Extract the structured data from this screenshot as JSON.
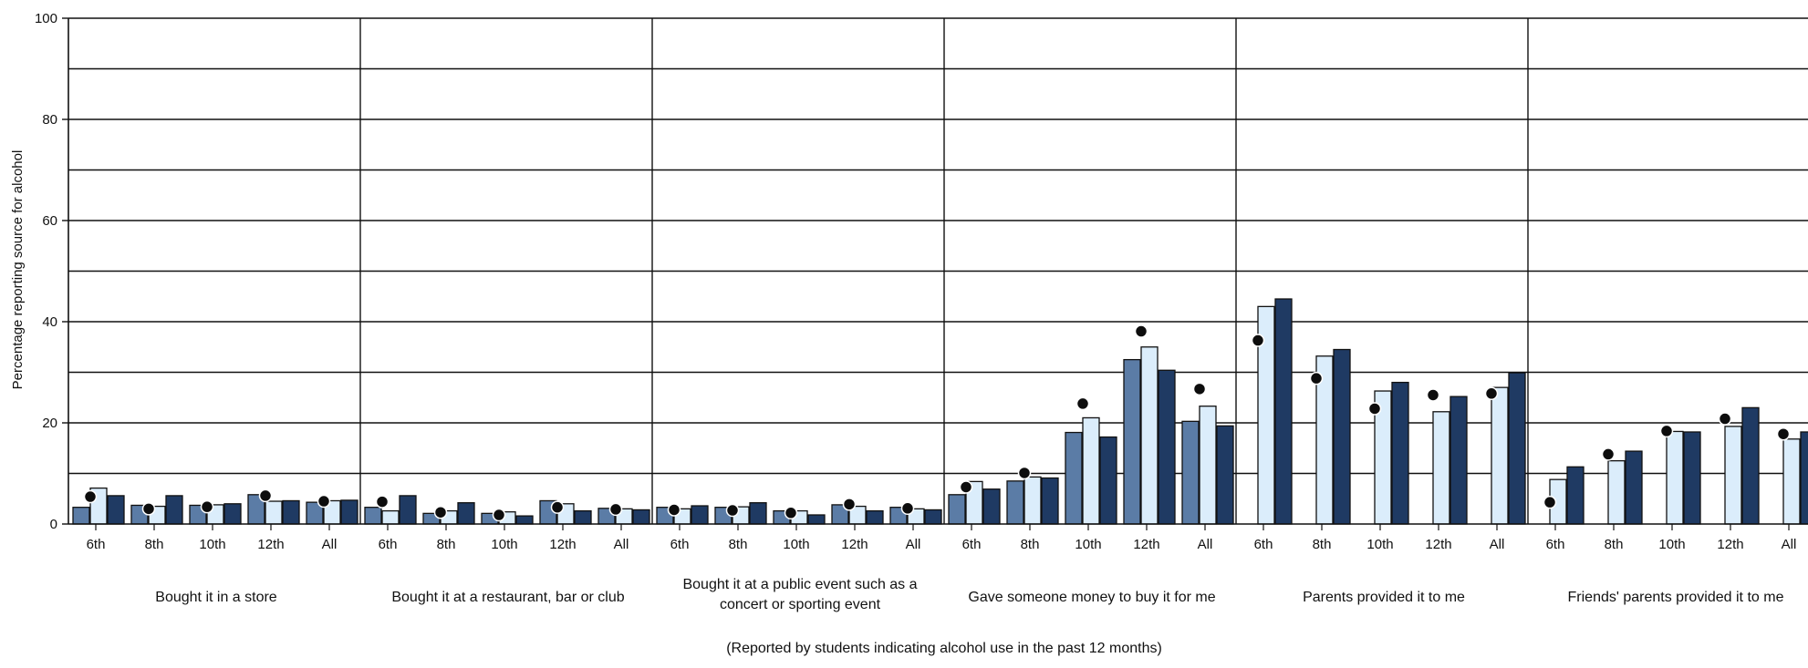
{
  "chart_data": {
    "type": "bar",
    "ylabel": "Percentage reporting source for alcohol",
    "ylim": [
      0,
      100
    ],
    "yticks": [
      0,
      20,
      40,
      60,
      80,
      100
    ],
    "ygrid": [
      10,
      20,
      30,
      40,
      50,
      60,
      70,
      80,
      90,
      100
    ],
    "grades": [
      "6th",
      "8th",
      "10th",
      "12th",
      "All"
    ],
    "note": "(Reported by students indicating alcohol use in the past 12 months)",
    "colors": {
      "series": [
        "#5b7ca6",
        "#dbedfb",
        "#1f3a63"
      ],
      "marker": "#0d0d0d",
      "bar_stroke": "#111111",
      "grid": "#111111"
    },
    "groups": [
      {
        "label": "Bought it in a store",
        "label_lines": [
          "Bought it in a store"
        ],
        "bars": [
          [
            3.3,
            7.1,
            5.6
          ],
          [
            3.7,
            3.5,
            5.6
          ],
          [
            3.7,
            3.8,
            4.0
          ],
          [
            5.8,
            4.5,
            4.6
          ],
          [
            4.3,
            4.6,
            4.7
          ]
        ],
        "markers": [
          5.4,
          3.0,
          3.4,
          5.6,
          4.5
        ]
      },
      {
        "label": "Bought it at a restaurant, bar or club",
        "label_lines": [
          "Bought it at a restaurant, bar or club"
        ],
        "bars": [
          [
            3.3,
            2.6,
            5.6
          ],
          [
            2.1,
            2.6,
            4.2
          ],
          [
            2.1,
            2.4,
            1.6
          ],
          [
            4.6,
            4.0,
            2.6
          ],
          [
            3.1,
            3.0,
            2.8
          ]
        ],
        "markers": [
          4.4,
          2.3,
          1.8,
          3.3,
          2.9
        ]
      },
      {
        "label": "Bought it at a public event such as a concert or sporting event",
        "label_lines": [
          "Bought it at a public event such as a",
          "concert or sporting event"
        ],
        "bars": [
          [
            3.3,
            3.0,
            3.6
          ],
          [
            3.3,
            3.4,
            4.2
          ],
          [
            2.6,
            2.6,
            1.8
          ],
          [
            3.8,
            3.5,
            2.6
          ],
          [
            3.3,
            3.0,
            2.8
          ]
        ],
        "markers": [
          2.8,
          2.7,
          2.2,
          3.9,
          3.1
        ]
      },
      {
        "label": "Gave someone money to buy it for me",
        "label_lines": [
          "Gave someone money to buy it for me"
        ],
        "bars": [
          [
            5.8,
            8.4,
            6.9
          ],
          [
            8.5,
            9.3,
            9.1
          ],
          [
            18.1,
            21.0,
            17.2
          ],
          [
            32.5,
            35.0,
            30.4
          ],
          [
            20.3,
            23.3,
            19.4
          ]
        ],
        "markers": [
          7.3,
          10.1,
          23.8,
          38.1,
          26.7
        ]
      },
      {
        "label": "Parents provided it to me",
        "label_lines": [
          "Parents provided it to me"
        ],
        "bars": [
          [
            null,
            43.0,
            44.5
          ],
          [
            null,
            33.2,
            34.5
          ],
          [
            null,
            26.3,
            28.0
          ],
          [
            null,
            22.2,
            25.2
          ],
          [
            null,
            27.0,
            29.9
          ]
        ],
        "markers": [
          36.3,
          28.8,
          22.8,
          25.5,
          25.8
        ]
      },
      {
        "label": "Friends' parents provided it to me",
        "label_lines": [
          "Friends' parents provided it to me"
        ],
        "bars": [
          [
            null,
            8.8,
            11.3
          ],
          [
            null,
            12.5,
            14.4
          ],
          [
            null,
            18.3,
            18.2
          ],
          [
            null,
            19.3,
            23.0
          ],
          [
            null,
            16.8,
            18.2
          ]
        ],
        "markers": [
          4.3,
          13.8,
          18.4,
          20.8,
          17.8
        ]
      }
    ]
  }
}
